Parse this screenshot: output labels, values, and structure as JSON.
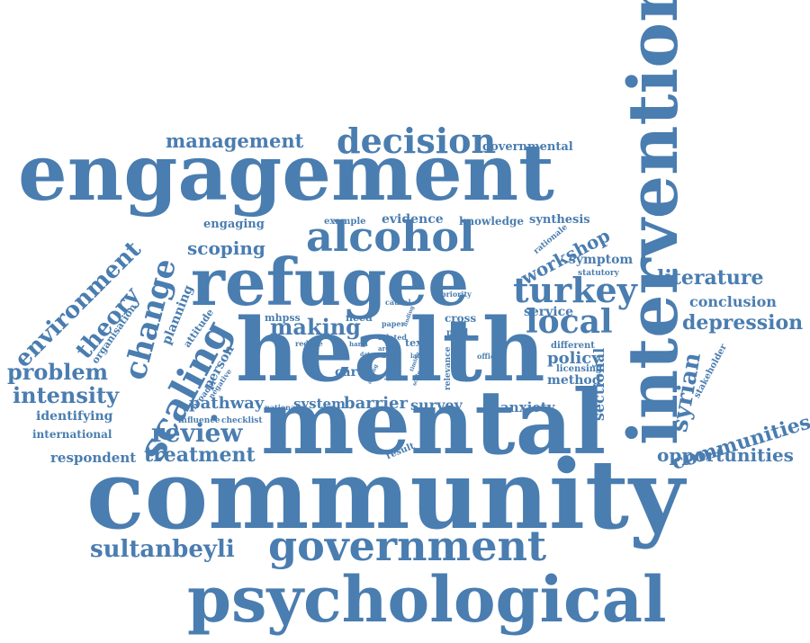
{
  "cloud": {
    "color": "#4a7db0",
    "words": {
      "community": "community",
      "mental": "mental",
      "health": "health",
      "refugee": "refugee",
      "engagement": "engagement",
      "intervention": "intervention",
      "psychological": "psychological",
      "government": "government",
      "alcohol": "alcohol",
      "scaling": "scaling",
      "decision": "decision",
      "turkey": "turkey",
      "local": "local",
      "change": "change",
      "management": "management",
      "environment": "environment",
      "review": "review",
      "treatment": "treatment",
      "communities": "communities",
      "theory": "theory",
      "sultanbeyli": "sultanbeyli",
      "syrian": "syrian",
      "making": "making",
      "depression": "depression",
      "literature": "literature",
      "intensity": "intensity",
      "problem": "problem",
      "opportunities": "opportunities",
      "scoping": "scoping",
      "workshop": "workshop",
      "pathway": "pathway",
      "barrier": "barrier",
      "policy": "policy",
      "conclusion": "conclusion",
      "respondent": "respondent",
      "survey": "survey",
      "sectional": "sectional",
      "system": "system",
      "anxiety": "anxiety",
      "identifying": "identifying",
      "international": "international",
      "planning": "planning",
      "service": "service",
      "symptom": "symptom",
      "method": "method",
      "evidence": "evidence",
      "knowledge": "knowledge",
      "synthesis": "synthesis",
      "engaging": "engaging",
      "person": "person",
      "care": "care",
      "governmental": "governmental",
      "attitude": "attitude",
      "organisation": "organisation",
      "need": "need",
      "cross": "cross",
      "mhpss": "mhpss",
      "example": "example",
      "text": "text",
      "licensing": "licensing",
      "different": "different",
      "stakeholder": "stakeholder",
      "influence": "influence",
      "checklist": "checklist",
      "broader": "broader",
      "negative": "negative",
      "national": "national",
      "result": "result",
      "rationale": "rationale",
      "statutory": "statutory",
      "priority": "priority",
      "causal": "causal",
      "paper": "paper",
      "related": "related",
      "ptsd": "ptsd",
      "relevance": "relevance",
      "official": "official",
      "reduce": "reduce",
      "harm": "harm",
      "area": "area",
      "acc": "acc",
      "lack": "lack",
      "timing": "timing",
      "finding": "finding",
      "scale": "scale",
      "year": "year",
      "data": "data",
      "among": "among",
      "dot": "●"
    }
  }
}
